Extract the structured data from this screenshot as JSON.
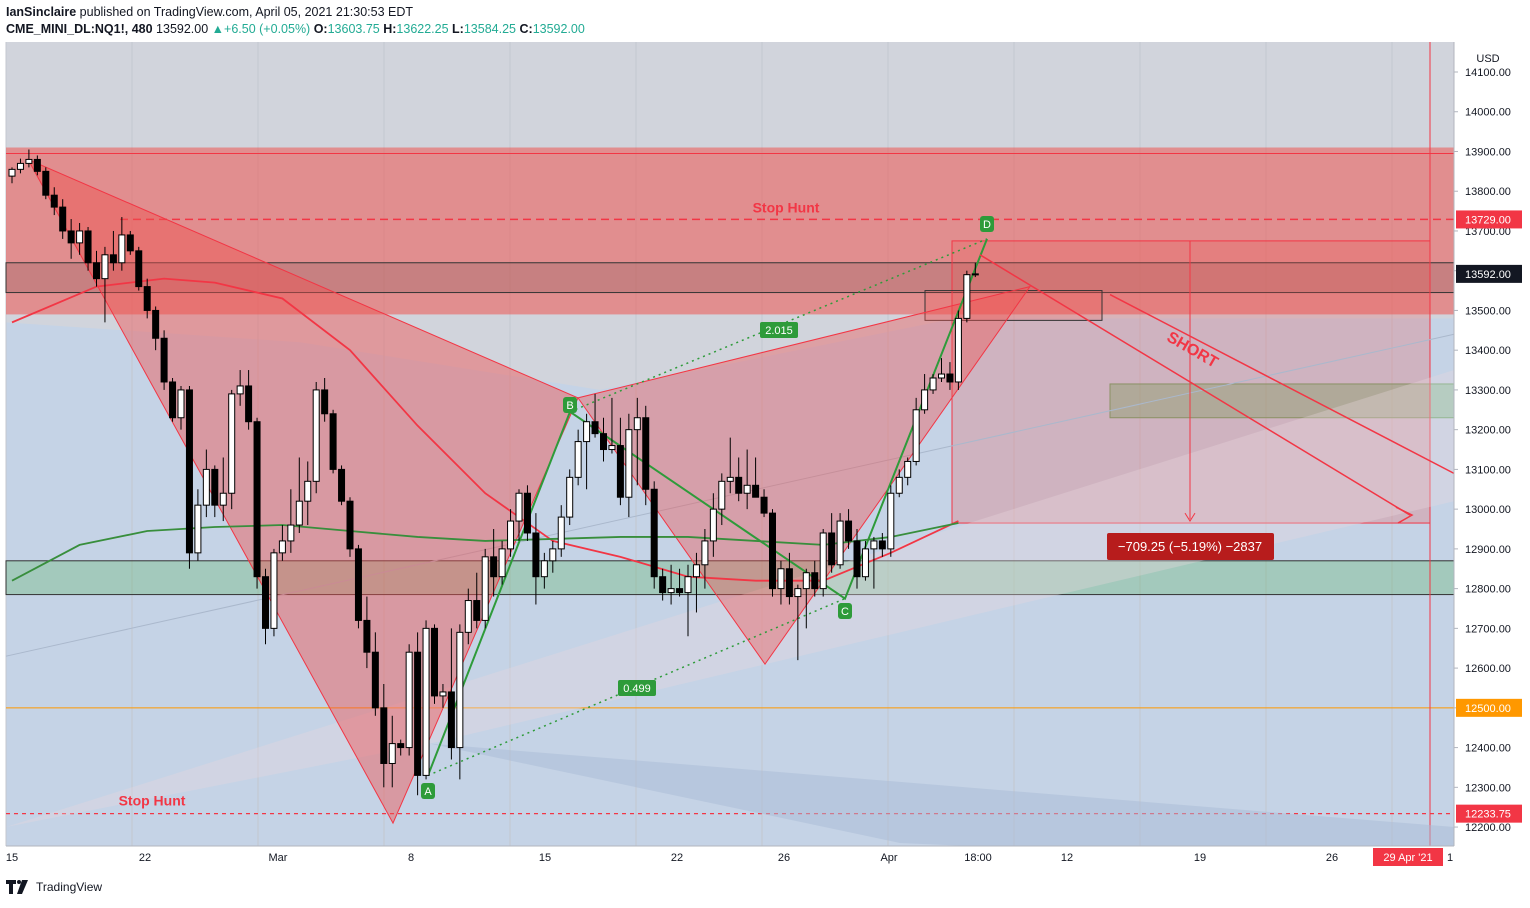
{
  "header": {
    "author": "IanSinclaire",
    "published": "published on TradingView.com, April 05, 2021 21:30:53 EDT",
    "symbol": "CME_MINI_DL:NQ1!, 480",
    "last": "13592.00",
    "change": "+6.50 (+0.05%)",
    "open_label": "O:",
    "open": "13603.75",
    "high_label": "H:",
    "high": "13622.25",
    "low_label": "L:",
    "low": "13584.25",
    "close_label": "C:",
    "close": "13592.00"
  },
  "footer": {
    "brand": "TradingView",
    "logo_icon": "tradingview-logo-icon"
  },
  "colors": {
    "up_candle": "#ffffff",
    "down_candle": "#000000",
    "ema_red": "#f23645",
    "ma_green": "#388e3c",
    "zone_red": "#ef5350",
    "zone_green": "#4caf50",
    "orange_line": "#ff9800"
  },
  "chart_data": {
    "type": "candlestick",
    "currency": "USD",
    "ylim": [
      12160,
      14160
    ],
    "y_ticks": [
      "14100.00",
      "14000.00",
      "13900.00",
      "13800.00",
      "13700.00",
      "13600.00",
      "13500.00",
      "13400.00",
      "13300.00",
      "13200.00",
      "13100.00",
      "13000.00",
      "12900.00",
      "12800.00",
      "12700.00",
      "12600.00",
      "12500.00",
      "12400.00",
      "12300.00",
      "12200.00"
    ],
    "x_ticks": [
      "15",
      "22",
      "Mar",
      "8",
      "15",
      "22",
      "26",
      "Apr",
      "18:00",
      "12",
      "19",
      "26",
      "29 Apr '21",
      "1"
    ],
    "price_badges": [
      {
        "label": "13729.00",
        "value": 13729,
        "color": "#f23645"
      },
      {
        "label": "13592.00",
        "value": 13592,
        "color": "#131722"
      },
      {
        "label": "12500.00",
        "value": 12500,
        "color": "#ff9800"
      },
      {
        "label": "12233.75",
        "value": 12233.75,
        "color": "#f23645"
      }
    ],
    "annotations": {
      "stop_hunt_top": "Stop Hunt",
      "stop_hunt_bottom": "Stop Hunt",
      "short": "SHORT",
      "ratio_upper": "2.015",
      "ratio_lower": "0.499",
      "measure": "−709.25 (−5.19%) −2837",
      "points": [
        "A",
        "B",
        "C",
        "D"
      ]
    },
    "harmonic": {
      "X": 13880,
      "A": 12330,
      "B": 13280,
      "C": 12770,
      "D": 13680
    },
    "zones": [
      {
        "name": "supply",
        "from": 13490,
        "to": 13910,
        "color": "red"
      },
      {
        "name": "resistance-band",
        "from": 13545,
        "to": 13620,
        "color": "grey"
      },
      {
        "name": "demand",
        "from": 12785,
        "to": 12870,
        "color": "green"
      },
      {
        "name": "target",
        "from": 13230,
        "to": 13315,
        "color": "green"
      }
    ],
    "candles": [
      [
        13838,
        13860,
        13820,
        13855
      ],
      [
        13855,
        13882,
        13845,
        13870
      ],
      [
        13870,
        13905,
        13860,
        13880
      ],
      [
        13880,
        13890,
        13840,
        13850
      ],
      [
        13850,
        13860,
        13780,
        13790
      ],
      [
        13790,
        13810,
        13740,
        13760
      ],
      [
        13760,
        13780,
        13680,
        13700
      ],
      [
        13700,
        13730,
        13630,
        13670
      ],
      [
        13670,
        13720,
        13640,
        13700
      ],
      [
        13700,
        13710,
        13600,
        13620
      ],
      [
        13620,
        13650,
        13560,
        13580
      ],
      [
        13580,
        13660,
        13470,
        13640
      ],
      [
        13640,
        13700,
        13600,
        13620
      ],
      [
        13620,
        13735,
        13600,
        13690
      ],
      [
        13690,
        13700,
        13640,
        13650
      ],
      [
        13650,
        13660,
        13550,
        13560
      ],
      [
        13560,
        13580,
        13480,
        13500
      ],
      [
        13500,
        13510,
        13400,
        13430
      ],
      [
        13430,
        13450,
        13300,
        13320
      ],
      [
        13320,
        13330,
        13220,
        13230
      ],
      [
        13230,
        13310,
        13200,
        13300
      ],
      [
        13300,
        13310,
        12850,
        12890
      ],
      [
        12890,
        13050,
        12870,
        13010
      ],
      [
        13010,
        13150,
        12980,
        13100
      ],
      [
        13100,
        13110,
        12980,
        13010
      ],
      [
        13010,
        13130,
        12970,
        13040
      ],
      [
        13040,
        13300,
        13000,
        13290
      ],
      [
        13290,
        13350,
        13260,
        13310
      ],
      [
        13310,
        13350,
        13200,
        13220
      ],
      [
        13220,
        13230,
        12800,
        12830
      ],
      [
        12830,
        12850,
        12660,
        12700
      ],
      [
        12700,
        12900,
        12680,
        12890
      ],
      [
        12890,
        12960,
        12870,
        12920
      ],
      [
        12920,
        13050,
        12890,
        12960
      ],
      [
        12960,
        13130,
        12940,
        13020
      ],
      [
        13020,
        13120,
        12960,
        13070
      ],
      [
        13070,
        13320,
        13040,
        13300
      ],
      [
        13300,
        13330,
        13220,
        13240
      ],
      [
        13240,
        13250,
        13090,
        13100
      ],
      [
        13100,
        13110,
        13010,
        13020
      ],
      [
        13020,
        13030,
        12880,
        12900
      ],
      [
        12900,
        12910,
        12700,
        12720
      ],
      [
        12720,
        12780,
        12600,
        12640
      ],
      [
        12640,
        12690,
        12480,
        12500
      ],
      [
        12500,
        12560,
        12300,
        12360
      ],
      [
        12360,
        12480,
        12300,
        12410
      ],
      [
        12410,
        12420,
        12380,
        12400
      ],
      [
        12400,
        12660,
        12380,
        12640
      ],
      [
        12640,
        12690,
        12280,
        12330
      ],
      [
        12330,
        12720,
        12320,
        12700
      ],
      [
        12700,
        12710,
        12510,
        12530
      ],
      [
        12530,
        12560,
        12500,
        12540
      ],
      [
        12540,
        12700,
        12370,
        12400
      ],
      [
        12400,
        12710,
        12320,
        12690
      ],
      [
        12690,
        12800,
        12660,
        12770
      ],
      [
        12770,
        12840,
        12700,
        12720
      ],
      [
        12720,
        12900,
        12700,
        12880
      ],
      [
        12880,
        12950,
        12780,
        12830
      ],
      [
        12830,
        12920,
        12810,
        12900
      ],
      [
        12900,
        13000,
        12880,
        12970
      ],
      [
        12970,
        13050,
        12920,
        13040
      ],
      [
        13040,
        13060,
        12920,
        12940
      ],
      [
        12940,
        12990,
        12760,
        12830
      ],
      [
        12830,
        12890,
        12800,
        12870
      ],
      [
        12870,
        12920,
        12840,
        12900
      ],
      [
        12900,
        13010,
        12880,
        12980
      ],
      [
        12980,
        13100,
        12960,
        13080
      ],
      [
        13080,
        13200,
        13060,
        13170
      ],
      [
        13170,
        13240,
        13050,
        13220
      ],
      [
        13220,
        13290,
        13180,
        13190
      ],
      [
        13190,
        13230,
        13120,
        13150
      ],
      [
        13150,
        13280,
        13140,
        13160
      ],
      [
        13160,
        13230,
        13010,
        13030
      ],
      [
        13030,
        13240,
        12980,
        13200
      ],
      [
        13200,
        13280,
        13060,
        13230
      ],
      [
        13230,
        13260,
        13010,
        13050
      ],
      [
        13050,
        13070,
        12800,
        12830
      ],
      [
        12830,
        12850,
        12770,
        12790
      ],
      [
        12790,
        12860,
        12760,
        12800
      ],
      [
        12800,
        12850,
        12780,
        12790
      ],
      [
        12790,
        12860,
        12680,
        12830
      ],
      [
        12830,
        12890,
        12740,
        12860
      ],
      [
        12860,
        12950,
        12800,
        12920
      ],
      [
        12920,
        13040,
        12880,
        13000
      ],
      [
        13000,
        13090,
        12960,
        13070
      ],
      [
        13070,
        13180,
        13040,
        13080
      ],
      [
        13080,
        13130,
        13020,
        13040
      ],
      [
        13040,
        13150,
        13000,
        13060
      ],
      [
        13060,
        13130,
        13030,
        13030
      ],
      [
        13030,
        13050,
        12980,
        12990
      ],
      [
        12990,
        13000,
        12780,
        12800
      ],
      [
        12800,
        12870,
        12760,
        12850
      ],
      [
        12850,
        12890,
        12760,
        12780
      ],
      [
        12780,
        12810,
        12620,
        12800
      ],
      [
        12800,
        12850,
        12700,
        12840
      ],
      [
        12840,
        12870,
        12780,
        12800
      ],
      [
        12800,
        12950,
        12780,
        12940
      ],
      [
        12940,
        12990,
        12840,
        12860
      ],
      [
        12860,
        12990,
        12850,
        12970
      ],
      [
        12970,
        13000,
        12900,
        12920
      ],
      [
        12920,
        12950,
        12800,
        12830
      ],
      [
        12830,
        12920,
        12820,
        12900
      ],
      [
        12900,
        12930,
        12800,
        12920
      ],
      [
        12920,
        12940,
        12880,
        12900
      ],
      [
        12900,
        13060,
        12880,
        13040
      ],
      [
        13040,
        13100,
        13030,
        13080
      ],
      [
        13080,
        13130,
        13060,
        13120
      ],
      [
        13120,
        13280,
        13110,
        13250
      ],
      [
        13250,
        13340,
        13240,
        13300
      ],
      [
        13300,
        13340,
        13290,
        13330
      ],
      [
        13330,
        13380,
        13320,
        13340
      ],
      [
        13340,
        13370,
        13300,
        13320
      ],
      [
        13320,
        13500,
        13300,
        13480
      ],
      [
        13480,
        13600,
        13470,
        13590
      ],
      [
        13590,
        13620,
        13584,
        13592
      ]
    ],
    "ema_red": [
      [
        0,
        13470
      ],
      [
        10,
        13560
      ],
      [
        18,
        13580
      ],
      [
        24,
        13570
      ],
      [
        32,
        13530
      ],
      [
        40,
        13400
      ],
      [
        48,
        13210
      ],
      [
        56,
        13040
      ],
      [
        64,
        12920
      ],
      [
        72,
        12880
      ],
      [
        80,
        12830
      ],
      [
        88,
        12820
      ],
      [
        96,
        12820
      ],
      [
        104,
        12890
      ],
      [
        112,
        12970
      ]
    ],
    "ma_green": [
      [
        0,
        12820
      ],
      [
        8,
        12910
      ],
      [
        16,
        12945
      ],
      [
        24,
        12955
      ],
      [
        32,
        12960
      ],
      [
        40,
        12945
      ],
      [
        48,
        12930
      ],
      [
        56,
        12920
      ],
      [
        64,
        12925
      ],
      [
        72,
        12930
      ],
      [
        80,
        12930
      ],
      [
        88,
        12920
      ],
      [
        96,
        12910
      ],
      [
        104,
        12930
      ],
      [
        112,
        12965
      ]
    ]
  }
}
